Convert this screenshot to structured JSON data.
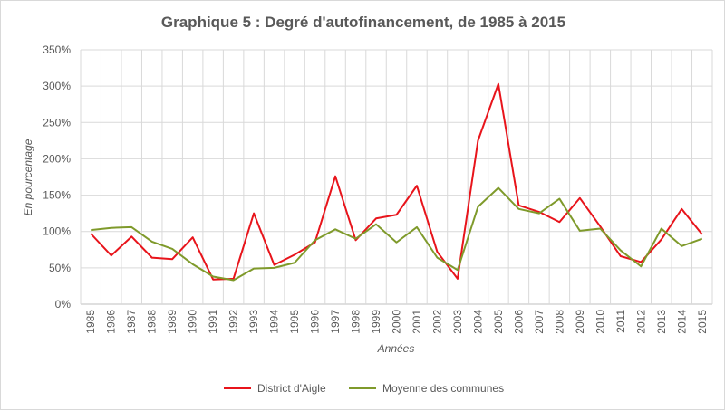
{
  "chart_data": {
    "type": "line",
    "title": "Graphique 5 : Degré d'autofinancement, de 1985 à 2015",
    "xlabel": "Années",
    "ylabel": "En pourcentage",
    "ylim": [
      0,
      350
    ],
    "y_ticks": [
      0,
      50,
      100,
      150,
      200,
      250,
      300,
      350
    ],
    "y_tick_labels": [
      "0%",
      "50%",
      "100%",
      "150%",
      "200%",
      "250%",
      "300%",
      "350%"
    ],
    "grid": true,
    "legend_position": "bottom",
    "x": [
      "1985",
      "1986",
      "1987",
      "1988",
      "1989",
      "1990",
      "1991",
      "1992",
      "1993",
      "1994",
      "1995",
      "1996",
      "1997",
      "1998",
      "1999",
      "2000",
      "2001",
      "2002",
      "2003",
      "2004",
      "2005",
      "2006",
      "2007",
      "2008",
      "2009",
      "2010",
      "2011",
      "2012",
      "2013",
      "2014",
      "2015"
    ],
    "series": [
      {
        "name": "District d'Aigle",
        "color": "#e8141b",
        "values": [
          97,
          67,
          93,
          64,
          62,
          92,
          34,
          35,
          125,
          54,
          68,
          85,
          176,
          88,
          118,
          123,
          163,
          72,
          35,
          225,
          303,
          136,
          127,
          113,
          146,
          107,
          66,
          58,
          89,
          131,
          96
        ]
      },
      {
        "name": "Moyenne des communes",
        "color": "#7f9a2b",
        "values": [
          102,
          105,
          106,
          86,
          76,
          55,
          38,
          33,
          49,
          50,
          57,
          88,
          103,
          90,
          110,
          85,
          106,
          64,
          47,
          134,
          160,
          131,
          125,
          145,
          101,
          104,
          74,
          52,
          104,
          80,
          90
        ]
      }
    ]
  }
}
